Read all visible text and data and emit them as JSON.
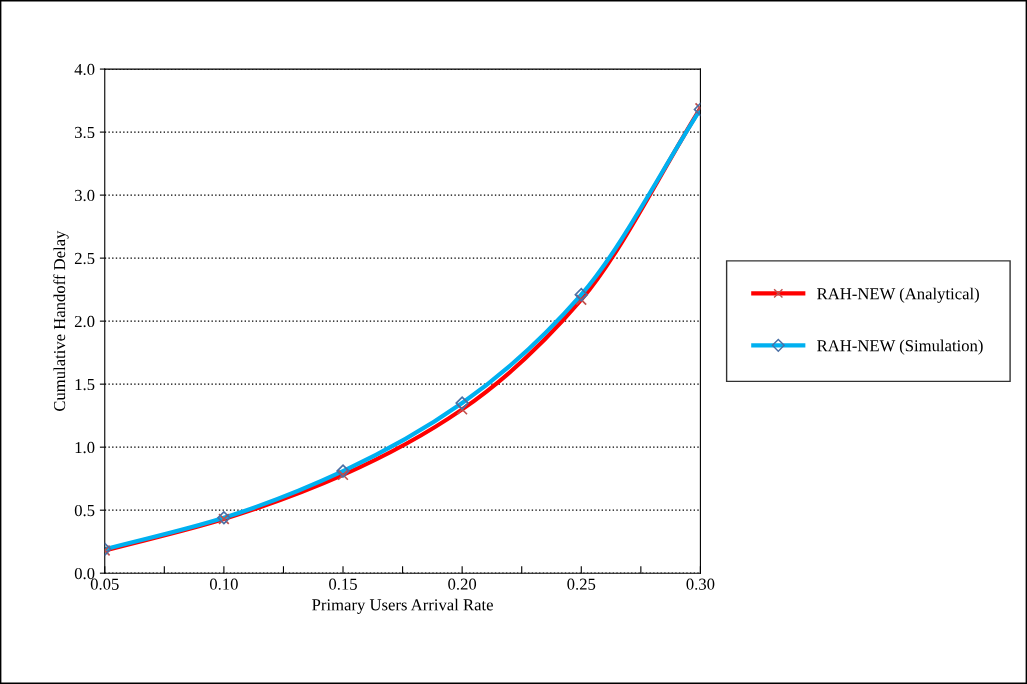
{
  "chart_data": {
    "type": "line",
    "xlabel": "Primary Users Arrival Rate",
    "ylabel": "Cumulative Handoff Delay",
    "x": [
      0.05,
      0.1,
      0.15,
      0.2,
      0.25,
      0.3
    ],
    "series": [
      {
        "name": "RAH-NEW (Analytical)",
        "color": "#ff0000",
        "marker": "cross",
        "values": [
          0.18,
          0.43,
          0.78,
          1.3,
          2.17,
          3.69
        ]
      },
      {
        "name": "RAH-NEW (Simulation)",
        "color": "#00b0f0",
        "marker": "diamond",
        "values": [
          0.19,
          0.44,
          0.81,
          1.35,
          2.21,
          3.68
        ]
      }
    ],
    "xlim": [
      0.05,
      0.3
    ],
    "xticks": [
      {
        "value": 0.05,
        "label": "0.05"
      },
      {
        "value": 0.075,
        "label": null
      },
      {
        "value": 0.1,
        "label": "0.10"
      },
      {
        "value": 0.125,
        "label": null
      },
      {
        "value": 0.15,
        "label": "0.15"
      },
      {
        "value": 0.175,
        "label": null
      },
      {
        "value": 0.2,
        "label": "0.20"
      },
      {
        "value": 0.225,
        "label": null
      },
      {
        "value": 0.25,
        "label": "0.25"
      },
      {
        "value": 0.275,
        "label": null
      },
      {
        "value": 0.3,
        "label": "0.30"
      }
    ],
    "ylim": [
      0,
      4
    ],
    "yticks": [
      {
        "value": 0,
        "label": "0.0"
      },
      {
        "value": 0.5,
        "label": "0.5"
      },
      {
        "value": 1,
        "label": "1.0"
      },
      {
        "value": 1.5,
        "label": "1.5"
      },
      {
        "value": 2,
        "label": "2.0"
      },
      {
        "value": 2.5,
        "label": "2.5"
      },
      {
        "value": 3,
        "label": "3.0"
      },
      {
        "value": 3.5,
        "label": "3.5"
      },
      {
        "value": 4,
        "label": "4.0"
      }
    ],
    "grid": "y",
    "legend": "right",
    "line_style": "solid"
  }
}
